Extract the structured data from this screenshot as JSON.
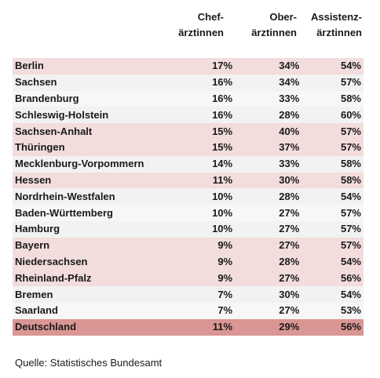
{
  "colors": {
    "highlight_row": "#f2dcdc",
    "plain_row": "#f2f2f2",
    "total_row": "#da9694"
  },
  "headers": {
    "col1_line1": "Chef-",
    "col1_line2": "ärztinnen",
    "col2_line1": "Ober-",
    "col2_line2": "ärztinnen",
    "col3_line1": "Assistenz-",
    "col3_line2": "ärztinnen"
  },
  "rows": [
    {
      "name": "Berlin",
      "chef": "17%",
      "ober": "34%",
      "assistenz": "54%"
    },
    {
      "name": "Sachsen",
      "chef": "16%",
      "ober": "34%",
      "assistenz": "57%"
    },
    {
      "name": "Brandenburg",
      "chef": "16%",
      "ober": "33%",
      "assistenz": "58%"
    },
    {
      "name": "Schleswig-Holstein",
      "chef": "16%",
      "ober": "28%",
      "assistenz": "60%"
    },
    {
      "name": "Sachsen-Anhalt",
      "chef": "15%",
      "ober": "40%",
      "assistenz": "57%"
    },
    {
      "name": "Thüringen",
      "chef": "15%",
      "ober": "37%",
      "assistenz": "57%"
    },
    {
      "name": "Mecklenburg-Vorpommern",
      "chef": "14%",
      "ober": "33%",
      "assistenz": "58%"
    },
    {
      "name": "Hessen",
      "chef": "11%",
      "ober": "30%",
      "assistenz": "58%"
    },
    {
      "name": "Nordrhein-Westfalen",
      "chef": "10%",
      "ober": "28%",
      "assistenz": "54%"
    },
    {
      "name": "Baden-Württemberg",
      "chef": "10%",
      "ober": "27%",
      "assistenz": "57%"
    },
    {
      "name": "Hamburg",
      "chef": "10%",
      "ober": "27%",
      "assistenz": "57%"
    },
    {
      "name": "Bayern",
      "chef": "9%",
      "ober": "27%",
      "assistenz": "57%"
    },
    {
      "name": "Niedersachsen",
      "chef": "9%",
      "ober": "28%",
      "assistenz": "54%"
    },
    {
      "name": "Rheinland-Pfalz",
      "chef": "9%",
      "ober": "27%",
      "assistenz": "56%"
    },
    {
      "name": "Bremen",
      "chef": "7%",
      "ober": "30%",
      "assistenz": "54%"
    },
    {
      "name": "Saarland",
      "chef": "7%",
      "ober": "27%",
      "assistenz": "53%"
    }
  ],
  "total": {
    "name": "Deutschland",
    "chef": "11%",
    "ober": "29%",
    "assistenz": "56%"
  },
  "source": "Quelle: Statistisches Bundesamt"
}
